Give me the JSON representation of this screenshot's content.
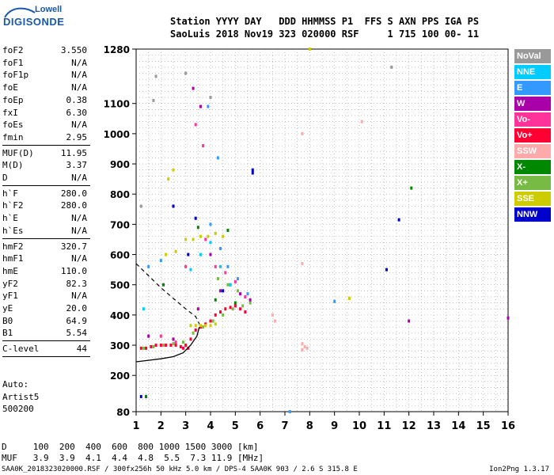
{
  "logo": {
    "line1": "Lowell",
    "line2": "DIGISONDE"
  },
  "header": {
    "row1": "Station YYYY DAY   DDD HHMMSS P1  FFS S AXN PPS IGA PS",
    "row2": "SaoLuis 2018 Nov19 323 020000 RSF     1 715 100 00- 11"
  },
  "params": [
    {
      "name": "foF2",
      "value": "3.550"
    },
    {
      "name": "foF1",
      "value": "N/A"
    },
    {
      "name": "foF1p",
      "value": "N/A"
    },
    {
      "name": "foE",
      "value": "N/A"
    },
    {
      "name": "foEp",
      "value": "0.38"
    },
    {
      "name": "fxI",
      "value": "6.30"
    },
    {
      "name": "foEs",
      "value": "N/A"
    },
    {
      "name": "fmin",
      "value": "2.95"
    },
    {
      "name": "MUF(D)",
      "value": "11.95"
    },
    {
      "name": "M(D)",
      "value": "3.37"
    },
    {
      "name": "D",
      "value": "N/A"
    },
    {
      "name": "h`F",
      "value": "280.0"
    },
    {
      "name": "h`F2",
      "value": "280.0"
    },
    {
      "name": "h`E",
      "value": "N/A"
    },
    {
      "name": "h`Es",
      "value": "N/A"
    },
    {
      "name": "hmF2",
      "value": "320.7"
    },
    {
      "name": "hmF1",
      "value": "N/A"
    },
    {
      "name": "hmE",
      "value": "110.0"
    },
    {
      "name": "yF2",
      "value": "82.3"
    },
    {
      "name": "yF1",
      "value": "N/A"
    },
    {
      "name": "yE",
      "value": "20.0"
    },
    {
      "name": "B0",
      "value": "64.9"
    },
    {
      "name": "B1",
      "value": "5.54"
    },
    {
      "name": "C-level",
      "value": "44"
    }
  ],
  "auto": {
    "line1": "Auto:",
    "line2": "Artist5",
    "line3": "500200"
  },
  "legend": [
    {
      "label": "NoVal",
      "color": "#999999"
    },
    {
      "label": "NNE",
      "color": "#00ccff"
    },
    {
      "label": "E",
      "color": "#3399ff"
    },
    {
      "label": "W",
      "color": "#aa00aa"
    },
    {
      "label": "Vo-",
      "color": "#ff3399"
    },
    {
      "label": "Vo+",
      "color": "#ff0033"
    },
    {
      "label": "SSW",
      "color": "#ffaaaa"
    },
    {
      "label": "X-",
      "color": "#008800"
    },
    {
      "label": "X+",
      "color": "#77bb44"
    },
    {
      "label": "SSE",
      "color": "#cccc00"
    },
    {
      "label": "NNW",
      "color": "#0000cc"
    }
  ],
  "bottom": {
    "d_row": "D     100  200  400  600  800 1000 1500 3000 [km]",
    "muf_row": "MUF   3.9  3.9  4.1  4.4  4.8  5.5  7.3 11.9 [MHz]",
    "footer": "SAA0K_2018323020000.RSF / 300fx256h 50 kHz 5.0 km / DPS-4 SAA0K 903 / 2.6 S 315.8 E",
    "version": "Ion2Png 1.3.17"
  },
  "chart_data": {
    "type": "scatter",
    "xlim": [
      1,
      16
    ],
    "ylim": [
      80,
      1280
    ],
    "xticks": [
      "1",
      "2",
      "3",
      "4",
      "5",
      "6",
      "7",
      "8",
      "9",
      "10",
      "11",
      "12",
      "13",
      "14",
      "15",
      "16"
    ],
    "yticks": [
      "80",
      "200",
      "300",
      "400",
      "500",
      "600",
      "700",
      "800",
      "900",
      "1000",
      "1100",
      "1280"
    ],
    "grid": true,
    "traces": {
      "profile": [
        [
          1,
          245
        ],
        [
          1.5,
          250
        ],
        [
          2,
          255
        ],
        [
          2.5,
          262
        ],
        [
          2.9,
          275
        ],
        [
          3.2,
          300
        ],
        [
          3.45,
          330
        ],
        [
          3.55,
          360
        ]
      ],
      "virtual_dashed": [
        [
          1,
          570
        ],
        [
          1.5,
          530
        ],
        [
          2,
          490
        ],
        [
          2.5,
          455
        ],
        [
          3,
          420
        ],
        [
          3.4,
          395
        ],
        [
          3.55,
          370
        ]
      ]
    },
    "series": [
      {
        "label": "Vo+",
        "color": "#ff0033",
        "points": [
          [
            1.2,
            290
          ],
          [
            1.4,
            290
          ],
          [
            1.6,
            295
          ],
          [
            1.8,
            300
          ],
          [
            2.0,
            300
          ],
          [
            2.2,
            300
          ],
          [
            2.4,
            300
          ],
          [
            2.6,
            300
          ],
          [
            2.8,
            295
          ],
          [
            3.0,
            300
          ],
          [
            3.2,
            320
          ],
          [
            3.4,
            350
          ],
          [
            3.6,
            360
          ],
          [
            3.8,
            370
          ],
          [
            4.0,
            380
          ],
          [
            4.2,
            400
          ],
          [
            4.4,
            410
          ],
          [
            4.6,
            420
          ],
          [
            4.8,
            425
          ],
          [
            5.0,
            430
          ],
          [
            5.2,
            420
          ],
          [
            5.4,
            410
          ],
          [
            3.1,
            290
          ],
          [
            2.9,
            290
          ]
        ]
      },
      {
        "label": "X+",
        "color": "#77bb44",
        "points": [
          [
            1.3,
            290
          ],
          [
            1.7,
            295
          ],
          [
            2.1,
            300
          ],
          [
            2.5,
            305
          ],
          [
            2.9,
            310
          ],
          [
            3.3,
            340
          ],
          [
            3.7,
            360
          ],
          [
            4.1,
            380
          ],
          [
            4.5,
            400
          ],
          [
            4.9,
            420
          ],
          [
            5.3,
            430
          ],
          [
            5.6,
            440
          ],
          [
            4.3,
            520
          ],
          [
            4.7,
            500
          ],
          [
            5.1,
            480
          ]
        ]
      },
      {
        "label": "SSE",
        "color": "#cccc00",
        "points": [
          [
            2.2,
            600
          ],
          [
            2.6,
            610
          ],
          [
            3.0,
            650
          ],
          [
            3.3,
            650
          ],
          [
            3.6,
            660
          ],
          [
            3.9,
            660
          ],
          [
            4.2,
            670
          ],
          [
            4.5,
            660
          ],
          [
            2.3,
            850
          ],
          [
            2.5,
            880
          ],
          [
            3.2,
            365
          ],
          [
            3.4,
            365
          ],
          [
            3.6,
            365
          ],
          [
            3.8,
            365
          ],
          [
            4.0,
            365
          ],
          [
            4.2,
            370
          ],
          [
            8,
            1280
          ],
          [
            9.6,
            455
          ]
        ]
      },
      {
        "label": "W",
        "color": "#aa00aa",
        "points": [
          [
            1.5,
            330
          ],
          [
            2.5,
            320
          ],
          [
            3.3,
            1150
          ],
          [
            3.6,
            1090
          ],
          [
            4.0,
            600
          ],
          [
            4.4,
            480
          ],
          [
            4.8,
            500
          ],
          [
            5.2,
            470
          ],
          [
            3.5,
            420
          ],
          [
            16,
            390
          ],
          [
            12,
            380
          ],
          [
            5.6,
            450
          ]
        ]
      },
      {
        "label": "Vo-",
        "color": "#ff3399",
        "points": [
          [
            2.0,
            330
          ],
          [
            2.6,
            310
          ],
          [
            3.4,
            1030
          ],
          [
            3.7,
            960
          ],
          [
            3.8,
            650
          ],
          [
            4.2,
            560
          ],
          [
            4.6,
            540
          ],
          [
            5.0,
            510
          ],
          [
            5.4,
            460
          ],
          [
            3.0,
            560
          ]
        ]
      },
      {
        "label": "E",
        "color": "#3399ff",
        "points": [
          [
            3.9,
            1090
          ],
          [
            4.3,
            920
          ],
          [
            4.0,
            700
          ],
          [
            4.4,
            620
          ],
          [
            4.7,
            560
          ],
          [
            5.1,
            520
          ],
          [
            5.5,
            470
          ],
          [
            1.5,
            560
          ],
          [
            2.0,
            580
          ],
          [
            9.0,
            445
          ],
          [
            7.2,
            80
          ]
        ]
      },
      {
        "label": "NNE",
        "color": "#00ccff",
        "points": [
          [
            3.2,
            550
          ],
          [
            3.6,
            600
          ],
          [
            4.0,
            640
          ],
          [
            4.4,
            560
          ],
          [
            4.8,
            500
          ],
          [
            1.3,
            420
          ]
        ]
      },
      {
        "label": "NNW",
        "color": "#0000cc",
        "points": [
          [
            1.2,
            130
          ],
          [
            1.4,
            130
          ],
          [
            2.5,
            760
          ],
          [
            3.4,
            720
          ],
          [
            5.7,
            880
          ],
          [
            5.7,
            870
          ],
          [
            11.6,
            715
          ],
          [
            11.1,
            550
          ],
          [
            4.5,
            480
          ],
          [
            3.1,
            600
          ]
        ]
      },
      {
        "label": "X-",
        "color": "#008800",
        "points": [
          [
            1.4,
            130
          ],
          [
            2.1,
            500
          ],
          [
            3.5,
            690
          ],
          [
            4.7,
            680
          ],
          [
            12.1,
            820
          ],
          [
            4.2,
            450
          ],
          [
            5.0,
            440
          ]
        ]
      },
      {
        "label": "SSW",
        "color": "#ffaaaa",
        "points": [
          [
            7.7,
            285
          ],
          [
            7.8,
            295
          ],
          [
            7.7,
            305
          ],
          [
            7.9,
            290
          ],
          [
            7.7,
            570
          ],
          [
            7.7,
            1000
          ],
          [
            10.1,
            1040
          ],
          [
            6.5,
            400
          ],
          [
            6.6,
            380
          ]
        ]
      },
      {
        "label": "NoVal",
        "color": "#999999",
        "points": [
          [
            1.7,
            1110
          ],
          [
            1.8,
            1190
          ],
          [
            3.0,
            1200
          ],
          [
            4.0,
            1120
          ],
          [
            11.3,
            1220
          ],
          [
            1.2,
            760
          ]
        ]
      }
    ]
  }
}
